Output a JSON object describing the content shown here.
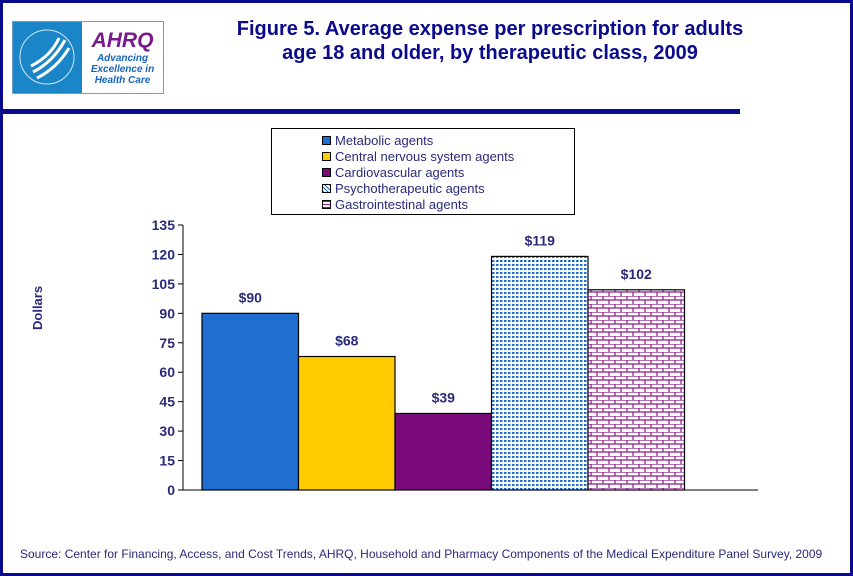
{
  "header": {
    "title_line1": "Figure 5. Average expense per prescription for adults",
    "title_line2": "age 18 and older, by therapeutic class, 2009",
    "logo": {
      "hhs_text": "DEPARTMENT OF HEALTH & HUMAN SERVICES USA",
      "ahrq": "AHRQ",
      "tagline1": "Advancing",
      "tagline2": "Excellence in",
      "tagline3": "Health Care"
    }
  },
  "chart_data": {
    "type": "bar",
    "title": "Figure 5. Average expense per prescription for adults age 18 and older, by therapeutic class, 2009",
    "ylabel": "Dollars",
    "xlabel": "",
    "ylim": [
      0,
      135
    ],
    "yticks": [
      0,
      15,
      30,
      45,
      60,
      75,
      90,
      105,
      120,
      135
    ],
    "grid": false,
    "legend_position": "top-center",
    "series": [
      {
        "name": "Metabolic agents",
        "value": 90,
        "label": "$90",
        "color": "#1f6fd0",
        "pattern": "solid"
      },
      {
        "name": "Central nervous system agents",
        "value": 68,
        "label": "$68",
        "color": "#ffcc00",
        "pattern": "solid"
      },
      {
        "name": "Cardiovascular agents",
        "value": 39,
        "label": "$39",
        "color": "#7a0a7a",
        "pattern": "solid"
      },
      {
        "name": "Psychotherapeutic agents",
        "value": 119,
        "label": "$119",
        "color": "#1f6fd0",
        "pattern": "dots"
      },
      {
        "name": "Gastrointestinal agents",
        "value": 102,
        "label": "$102",
        "color": "#8a1a8a",
        "pattern": "bricks"
      }
    ]
  },
  "source": "Source: Center for Financing, Access, and Cost Trends, AHRQ, Household and Pharmacy Components of the Medical Expenditure Panel Survey,  2009"
}
